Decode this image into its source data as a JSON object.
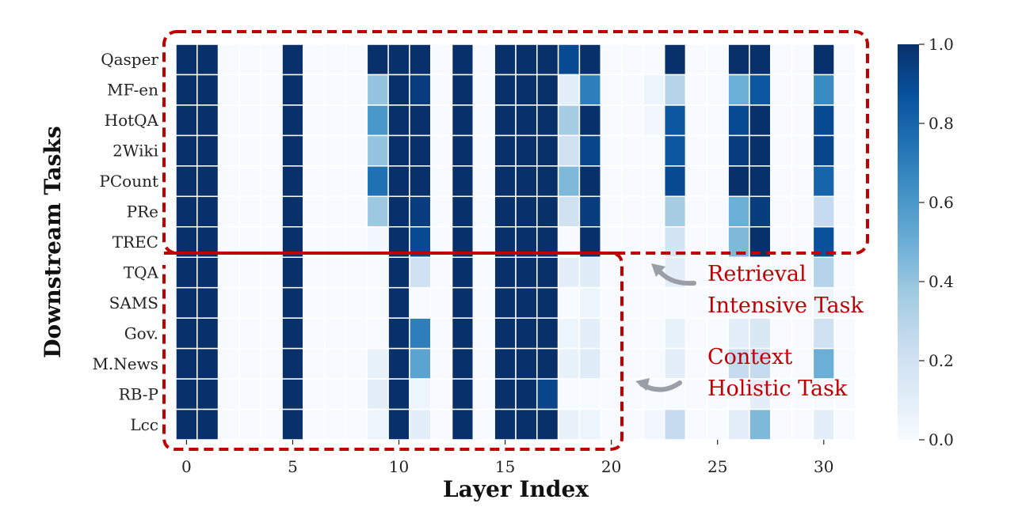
{
  "chart_data": {
    "type": "heatmap",
    "xlabel": "Layer Index",
    "ylabel": "Downstream Tasks",
    "x_categories": [
      0,
      1,
      2,
      3,
      4,
      5,
      6,
      7,
      8,
      9,
      10,
      11,
      12,
      13,
      14,
      15,
      16,
      17,
      18,
      19,
      20,
      21,
      22,
      23,
      24,
      25,
      26,
      27,
      28,
      29,
      30,
      31
    ],
    "x_tick_labels": [
      "0",
      "5",
      "10",
      "15",
      "20",
      "25",
      "30"
    ],
    "x_tick_values": [
      0,
      5,
      10,
      15,
      20,
      25,
      30
    ],
    "y_categories": [
      "Qasper",
      "MF-en",
      "HotQA",
      "2Wiki",
      "PCount",
      "PRe",
      "TREC",
      "TQA",
      "SAMS",
      "Gov.",
      "M.News",
      "RB-P",
      "Lcc"
    ],
    "colormap": "Blues",
    "vmin": 0,
    "vmax": 1,
    "colorbar_ticks": [
      "0.0",
      "0.2",
      "0.4",
      "0.6",
      "0.8",
      "1.0"
    ],
    "values": [
      [
        1,
        1,
        0,
        0,
        0,
        1,
        0,
        0,
        0,
        1,
        1,
        1,
        0,
        1,
        0,
        1,
        1,
        1,
        0.9,
        1,
        0,
        0,
        0,
        1,
        0,
        0,
        1,
        1,
        0,
        0,
        1,
        0
      ],
      [
        1,
        1,
        0,
        0,
        0,
        1,
        0,
        0,
        0,
        0.4,
        1,
        0.95,
        0,
        1,
        0,
        1,
        1,
        1,
        0.1,
        0.7,
        0,
        0,
        0.05,
        0.3,
        0,
        0,
        0.5,
        0.85,
        0,
        0,
        0.65,
        0
      ],
      [
        1,
        1,
        0,
        0,
        0,
        1,
        0,
        0,
        0,
        0.6,
        1,
        1,
        0,
        1,
        0,
        1,
        1,
        1,
        0.35,
        1,
        0,
        0,
        0.03,
        0.85,
        0,
        0,
        0.9,
        1,
        0,
        0,
        0.9,
        0
      ],
      [
        1,
        1,
        0,
        0,
        0,
        1,
        0,
        0,
        0,
        0.4,
        1,
        1,
        0,
        1,
        0,
        1,
        1,
        1,
        0.2,
        0.92,
        0,
        0,
        0,
        0.85,
        0,
        0,
        0.95,
        1,
        0,
        0,
        0.92,
        0
      ],
      [
        1,
        1,
        0,
        0,
        0,
        1,
        0,
        0,
        0,
        0.75,
        1,
        1,
        0,
        1,
        0,
        1,
        1,
        1,
        0.45,
        1,
        0,
        0,
        0,
        0.9,
        0,
        0,
        1,
        1,
        0,
        0,
        0.8,
        0
      ],
      [
        1,
        1,
        0,
        0,
        0,
        1,
        0,
        0,
        0,
        0.38,
        1,
        0.95,
        0,
        1,
        0,
        1,
        1,
        1,
        0.2,
        0.95,
        0,
        0,
        0,
        0.35,
        0,
        0,
        0.5,
        0.95,
        0,
        0,
        0.25,
        0
      ],
      [
        1,
        1,
        0,
        0,
        0,
        1,
        0,
        0,
        0,
        0.02,
        1,
        0.9,
        0,
        1,
        0,
        1,
        1,
        1,
        0,
        1,
        0,
        0,
        0,
        0.18,
        0,
        0,
        0.45,
        1,
        0,
        0,
        0.88,
        0
      ],
      [
        1,
        1,
        0,
        0,
        0,
        1,
        0,
        0,
        0,
        0,
        1,
        0.2,
        0,
        1,
        0,
        1,
        1,
        1,
        0.1,
        0.12,
        0,
        0,
        0,
        0.1,
        0,
        0,
        0,
        0,
        0,
        0,
        0.3,
        0
      ],
      [
        1,
        1,
        0,
        0,
        0,
        1,
        0,
        0,
        0,
        0,
        1,
        0,
        0,
        1,
        0,
        1,
        1,
        1,
        0,
        0.05,
        0,
        0,
        0,
        0,
        0,
        0,
        0,
        0,
        0,
        0,
        0.05,
        0
      ],
      [
        1,
        1,
        0,
        0,
        0,
        1,
        0,
        0,
        0,
        0,
        1,
        0.7,
        0,
        1,
        0,
        1,
        1,
        1,
        0.05,
        0.1,
        0,
        0,
        0,
        0.08,
        0,
        0,
        0.1,
        0.15,
        0,
        0,
        0.2,
        0
      ],
      [
        1,
        1,
        0,
        0,
        0,
        1,
        0,
        0,
        0,
        0.08,
        1,
        0.55,
        0,
        1,
        0,
        1,
        1,
        1,
        0.07,
        0.12,
        0,
        0,
        0,
        0.1,
        0,
        0,
        0.25,
        0.25,
        0,
        0,
        0.5,
        0
      ],
      [
        1,
        1,
        0,
        0,
        0,
        1,
        0,
        0,
        0,
        0.1,
        1,
        0.05,
        0,
        1,
        0,
        1,
        1,
        0.92,
        0,
        0,
        0,
        0,
        0,
        0,
        0,
        0,
        0,
        0.1,
        0,
        0,
        0,
        0
      ],
      [
        1,
        1,
        0,
        0,
        0,
        1,
        0,
        0,
        0,
        0.05,
        1,
        0.1,
        0,
        1,
        0,
        1,
        1,
        1,
        0.07,
        0.05,
        0,
        0,
        0.03,
        0.25,
        0,
        0,
        0.1,
        0.45,
        0,
        0,
        0.1,
        0
      ]
    ],
    "annotations": {
      "retrieval": [
        "Retrieval",
        "Intensive Task"
      ],
      "context": [
        "Context",
        "Holistic Task"
      ],
      "color": "#c00000"
    }
  }
}
